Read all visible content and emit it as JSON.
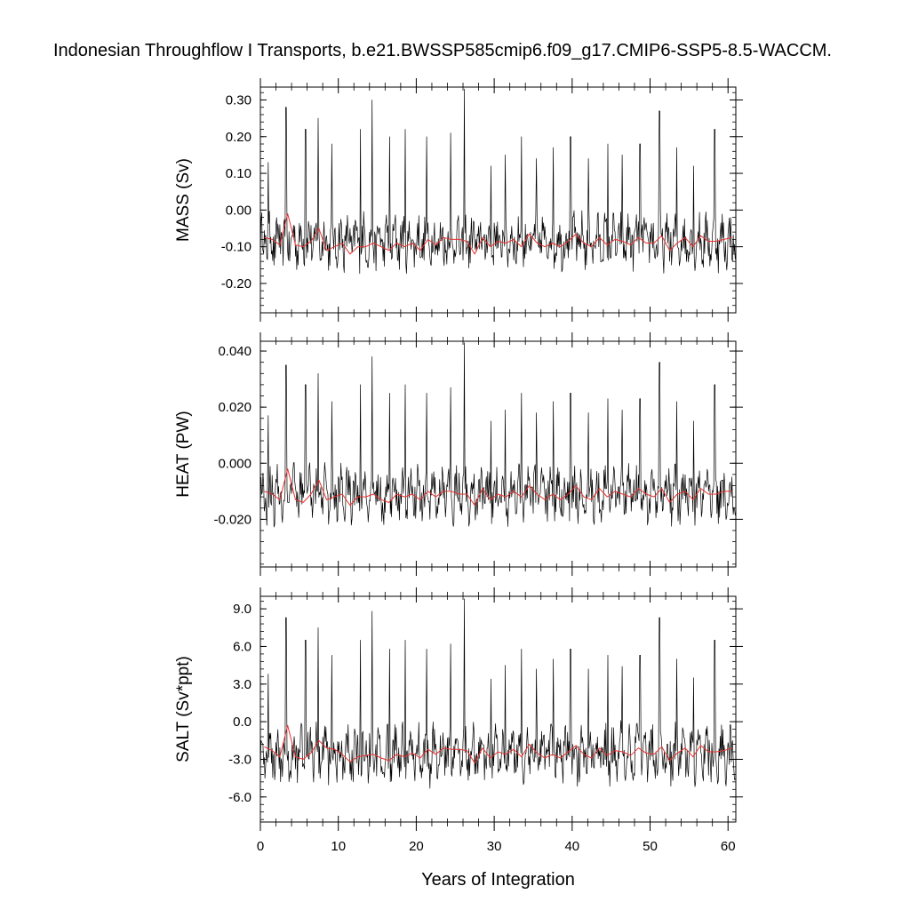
{
  "title": "Indonesian Throughflow I Transports, b.e21.BWSSP585cmip6.f09_g17.CMIP6-SSP5-8.5-WACCM.",
  "colors": {
    "monthly": "#000000",
    "annual": "#e8312e"
  },
  "chart_data": [
    {
      "type": "line",
      "panel": "mass",
      "ylabel": "MASS (Sv)",
      "ylim": [
        -0.28,
        0.335
      ],
      "yticks": [
        "0.30",
        "0.20",
        "0.10",
        "0.00",
        "-0.10",
        "-0.20"
      ],
      "ytick_values": [
        0.3,
        0.2,
        0.1,
        0.0,
        -0.1,
        -0.2
      ],
      "minor_step": 0.02,
      "series": [
        {
          "role": "monthly",
          "amplitude": 0.055,
          "baseline": -0.085,
          "spikes": [
            [
              1,
              0.13
            ],
            [
              3.3,
              0.28
            ],
            [
              5.8,
              0.22
            ],
            [
              7.4,
              0.25
            ],
            [
              9.2,
              0.18
            ],
            [
              12.8,
              0.22
            ],
            [
              14.3,
              0.3
            ],
            [
              16.6,
              0.2
            ],
            [
              18.6,
              0.22
            ],
            [
              21.3,
              0.2
            ],
            [
              24.4,
              0.21
            ],
            [
              26.2,
              0.33
            ],
            [
              29.6,
              0.12
            ],
            [
              31.4,
              0.15
            ],
            [
              33.5,
              0.2
            ],
            [
              35.4,
              0.14
            ],
            [
              37.6,
              0.17
            ],
            [
              39.8,
              0.2
            ],
            [
              42.1,
              0.14
            ],
            [
              44.6,
              0.18
            ],
            [
              46.4,
              0.15
            ],
            [
              48.7,
              0.18
            ],
            [
              51.2,
              0.27
            ],
            [
              53.4,
              0.17
            ],
            [
              55.6,
              0.12
            ],
            [
              58.3,
              0.22
            ]
          ]
        },
        {
          "role": "annual",
          "x": [
            0.5,
            1.5,
            2.5,
            3.5,
            4.5,
            5.5,
            6.5,
            7.5,
            8.5,
            9.5,
            10.5,
            11.5,
            12.5,
            13.5,
            14.5,
            15.5,
            16.5,
            17.5,
            18.5,
            19.5,
            20.5,
            21.5,
            22.5,
            23.5,
            24.5,
            25.5,
            26.5,
            27.5,
            28.5,
            29.5,
            30.5,
            31.5,
            32.5,
            33.5,
            34.5,
            35.5,
            36.5,
            37.5,
            38.5,
            39.5,
            40.5,
            41.5,
            42.5,
            43.5,
            44.5,
            45.5,
            46.5,
            47.5,
            48.5,
            49.5,
            50.5,
            51.5,
            52.5,
            53.5,
            54.5,
            55.5,
            56.5,
            57.5,
            58.5,
            59.5,
            60.5
          ],
          "values": [
            -0.075,
            -0.08,
            -0.095,
            -0.01,
            -0.095,
            -0.1,
            -0.085,
            -0.05,
            -0.11,
            -0.1,
            -0.09,
            -0.12,
            -0.1,
            -0.1,
            -0.09,
            -0.1,
            -0.11,
            -0.09,
            -0.1,
            -0.09,
            -0.11,
            -0.08,
            -0.095,
            -0.075,
            -0.08,
            -0.08,
            -0.085,
            -0.12,
            -0.075,
            -0.1,
            -0.085,
            -0.09,
            -0.08,
            -0.1,
            -0.065,
            -0.09,
            -0.1,
            -0.09,
            -0.1,
            -0.085,
            -0.065,
            -0.09,
            -0.1,
            -0.075,
            -0.095,
            -0.08,
            -0.085,
            -0.095,
            -0.075,
            -0.09,
            -0.09,
            -0.07,
            -0.11,
            -0.09,
            -0.075,
            -0.1,
            -0.07,
            -0.085,
            -0.085,
            -0.08,
            -0.075
          ]
        }
      ]
    },
    {
      "type": "line",
      "panel": "heat",
      "ylabel": "HEAT (PW)",
      "ylim": [
        -0.037,
        0.0435
      ],
      "yticks": [
        "0.040",
        "0.020",
        "0.000",
        "-0.020"
      ],
      "ytick_values": [
        0.04,
        0.02,
        0.0,
        -0.02
      ],
      "minor_step": 0.004,
      "series": [
        {
          "role": "monthly",
          "amplitude": 0.0075,
          "baseline": -0.011,
          "spikes": [
            [
              1,
              0.017
            ],
            [
              3.3,
              0.035
            ],
            [
              5.8,
              0.028
            ],
            [
              7.4,
              0.032
            ],
            [
              9.2,
              0.022
            ],
            [
              12.8,
              0.028
            ],
            [
              14.3,
              0.038
            ],
            [
              16.6,
              0.025
            ],
            [
              18.6,
              0.028
            ],
            [
              21.3,
              0.025
            ],
            [
              24.4,
              0.027
            ],
            [
              26.2,
              0.043
            ],
            [
              29.6,
              0.015
            ],
            [
              31.4,
              0.019
            ],
            [
              33.5,
              0.025
            ],
            [
              35.4,
              0.018
            ],
            [
              37.6,
              0.022
            ],
            [
              39.8,
              0.025
            ],
            [
              42.1,
              0.018
            ],
            [
              44.6,
              0.023
            ],
            [
              46.4,
              0.019
            ],
            [
              48.7,
              0.023
            ],
            [
              51.2,
              0.036
            ],
            [
              53.4,
              0.022
            ],
            [
              55.6,
              0.015
            ],
            [
              58.3,
              0.028
            ]
          ]
        },
        {
          "role": "annual",
          "x": [
            0.5,
            1.5,
            2.5,
            3.5,
            4.5,
            5.5,
            6.5,
            7.5,
            8.5,
            9.5,
            10.5,
            11.5,
            12.5,
            13.5,
            14.5,
            15.5,
            16.5,
            17.5,
            18.5,
            19.5,
            20.5,
            21.5,
            22.5,
            23.5,
            24.5,
            25.5,
            26.5,
            27.5,
            28.5,
            29.5,
            30.5,
            31.5,
            32.5,
            33.5,
            34.5,
            35.5,
            36.5,
            37.5,
            38.5,
            39.5,
            40.5,
            41.5,
            42.5,
            43.5,
            44.5,
            45.5,
            46.5,
            47.5,
            48.5,
            49.5,
            50.5,
            51.5,
            52.5,
            53.5,
            54.5,
            55.5,
            56.5,
            57.5,
            58.5,
            59.5,
            60.5
          ],
          "values": [
            -0.01,
            -0.011,
            -0.013,
            -0.002,
            -0.013,
            -0.014,
            -0.011,
            -0.006,
            -0.013,
            -0.012,
            -0.011,
            -0.015,
            -0.012,
            -0.012,
            -0.011,
            -0.013,
            -0.014,
            -0.011,
            -0.012,
            -0.011,
            -0.013,
            -0.01,
            -0.012,
            -0.01,
            -0.01,
            -0.011,
            -0.011,
            -0.015,
            -0.009,
            -0.013,
            -0.011,
            -0.012,
            -0.01,
            -0.012,
            -0.008,
            -0.011,
            -0.013,
            -0.011,
            -0.013,
            -0.011,
            -0.008,
            -0.012,
            -0.013,
            -0.009,
            -0.012,
            -0.01,
            -0.011,
            -0.012,
            -0.009,
            -0.011,
            -0.012,
            -0.009,
            -0.014,
            -0.011,
            -0.01,
            -0.013,
            -0.009,
            -0.011,
            -0.011,
            -0.01,
            -0.01
          ]
        }
      ]
    },
    {
      "type": "line",
      "panel": "salt",
      "ylabel": "SALT (Sv*ppt)",
      "ylim": [
        -8.0,
        10.0
      ],
      "yticks": [
        "9.0",
        "6.0",
        "3.0",
        "0.0",
        "-3.0",
        "-6.0"
      ],
      "ytick_values": [
        9.0,
        6.0,
        3.0,
        0.0,
        -3.0,
        -6.0
      ],
      "minor_step": 0.6,
      "series": [
        {
          "role": "monthly",
          "amplitude": 1.7,
          "baseline": -2.6,
          "spikes": [
            [
              1,
              3.8
            ],
            [
              3.3,
              8.3
            ],
            [
              5.8,
              6.5
            ],
            [
              7.4,
              7.5
            ],
            [
              9.2,
              5.3
            ],
            [
              12.8,
              6.5
            ],
            [
              14.3,
              8.8
            ],
            [
              16.6,
              5.8
            ],
            [
              18.6,
              6.5
            ],
            [
              21.3,
              5.8
            ],
            [
              24.4,
              6.2
            ],
            [
              26.2,
              9.8
            ],
            [
              29.6,
              3.4
            ],
            [
              31.4,
              4.5
            ],
            [
              33.5,
              5.8
            ],
            [
              35.4,
              4.2
            ],
            [
              37.6,
              5.0
            ],
            [
              39.8,
              5.8
            ],
            [
              42.1,
              4.2
            ],
            [
              44.6,
              5.3
            ],
            [
              46.4,
              4.4
            ],
            [
              48.7,
              5.3
            ],
            [
              51.2,
              8.3
            ],
            [
              53.4,
              5.0
            ],
            [
              55.6,
              3.5
            ],
            [
              58.3,
              6.5
            ]
          ]
        },
        {
          "role": "annual",
          "x": [
            0.5,
            1.5,
            2.5,
            3.5,
            4.5,
            5.5,
            6.5,
            7.5,
            8.5,
            9.5,
            10.5,
            11.5,
            12.5,
            13.5,
            14.5,
            15.5,
            16.5,
            17.5,
            18.5,
            19.5,
            20.5,
            21.5,
            22.5,
            23.5,
            24.5,
            25.5,
            26.5,
            27.5,
            28.5,
            29.5,
            30.5,
            31.5,
            32.5,
            33.5,
            34.5,
            35.5,
            36.5,
            37.5,
            38.5,
            39.5,
            40.5,
            41.5,
            42.5,
            43.5,
            44.5,
            45.5,
            46.5,
            47.5,
            48.5,
            49.5,
            50.5,
            51.5,
            52.5,
            53.5,
            54.5,
            55.5,
            56.5,
            57.5,
            58.5,
            59.5,
            60.5
          ],
          "values": [
            -2.0,
            -2.3,
            -2.8,
            -0.3,
            -2.8,
            -3.0,
            -2.5,
            -1.5,
            -2.1,
            -2.2,
            -2.6,
            -3.2,
            -2.8,
            -2.7,
            -2.6,
            -2.9,
            -3.1,
            -2.6,
            -2.8,
            -2.5,
            -2.9,
            -2.2,
            -2.6,
            -2.1,
            -2.2,
            -2.2,
            -2.3,
            -3.3,
            -2.1,
            -2.9,
            -2.4,
            -2.6,
            -2.2,
            -2.8,
            -1.8,
            -2.5,
            -2.9,
            -2.6,
            -2.9,
            -2.4,
            -1.9,
            -2.6,
            -2.9,
            -2.1,
            -2.7,
            -2.3,
            -2.4,
            -2.7,
            -2.1,
            -2.5,
            -2.6,
            -2.0,
            -3.1,
            -2.5,
            -2.1,
            -2.8,
            -1.9,
            -2.4,
            -2.4,
            -2.3,
            -2.1
          ]
        }
      ]
    }
  ],
  "xaxis": {
    "label": "Years of Integration",
    "xlim": [
      0,
      61
    ],
    "ticks": [
      "0",
      "10",
      "20",
      "30",
      "40",
      "50",
      "60"
    ],
    "tick_values": [
      0,
      10,
      20,
      30,
      40,
      50,
      60
    ],
    "minor_step": 2
  }
}
